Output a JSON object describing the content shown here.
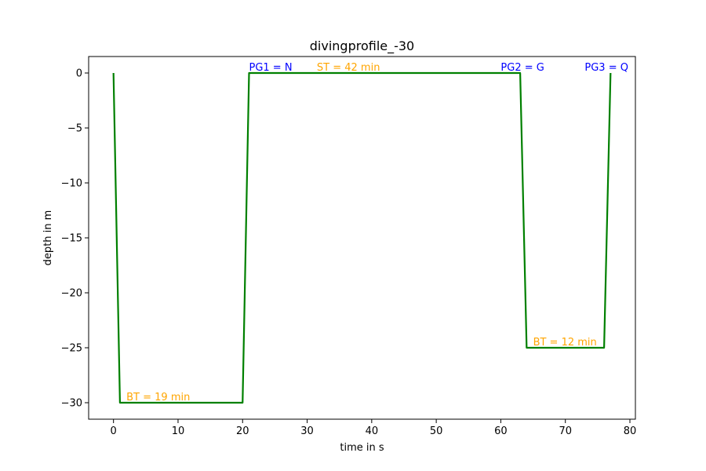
{
  "chart_data": {
    "type": "line",
    "title": "divingprofile_-30",
    "xlabel": "time in s",
    "ylabel": "depth in m",
    "xlim": [
      -3.85,
      80.85
    ],
    "ylim": [
      -31.5,
      1.5
    ],
    "xticks": [
      0,
      10,
      20,
      30,
      40,
      50,
      60,
      70,
      80
    ],
    "yticks": [
      0,
      -5,
      -10,
      -15,
      -20,
      -25,
      -30
    ],
    "tick_labels_x": [
      "0",
      "10",
      "20",
      "30",
      "40",
      "50",
      "60",
      "70",
      "80"
    ],
    "tick_labels_y": [
      "0",
      "−5",
      "−10",
      "−15",
      "−20",
      "−25",
      "−30"
    ],
    "grid": false,
    "series": [
      {
        "color": "#008000",
        "x": [
          0,
          1,
          20,
          21,
          63,
          64,
          76,
          77
        ],
        "y": [
          0,
          -30,
          -30,
          0,
          0,
          -25,
          -25,
          0
        ]
      }
    ],
    "annotations": [
      {
        "text": "PG1 = N",
        "x": 21,
        "y": 0,
        "color": "#0000ff"
      },
      {
        "text": "ST = 42 min",
        "x": 31.5,
        "y": 0,
        "color": "#ffa500"
      },
      {
        "text": "PG2 = G",
        "x": 60,
        "y": 0,
        "color": "#0000ff"
      },
      {
        "text": "PG3 = Q",
        "x": 73,
        "y": 0,
        "color": "#0000ff"
      },
      {
        "text": "BT = 19 min",
        "x": 2,
        "y": -30,
        "color": "#ffa500"
      },
      {
        "text": "BT = 12 min",
        "x": 65,
        "y": -25,
        "color": "#ffa500"
      }
    ]
  }
}
